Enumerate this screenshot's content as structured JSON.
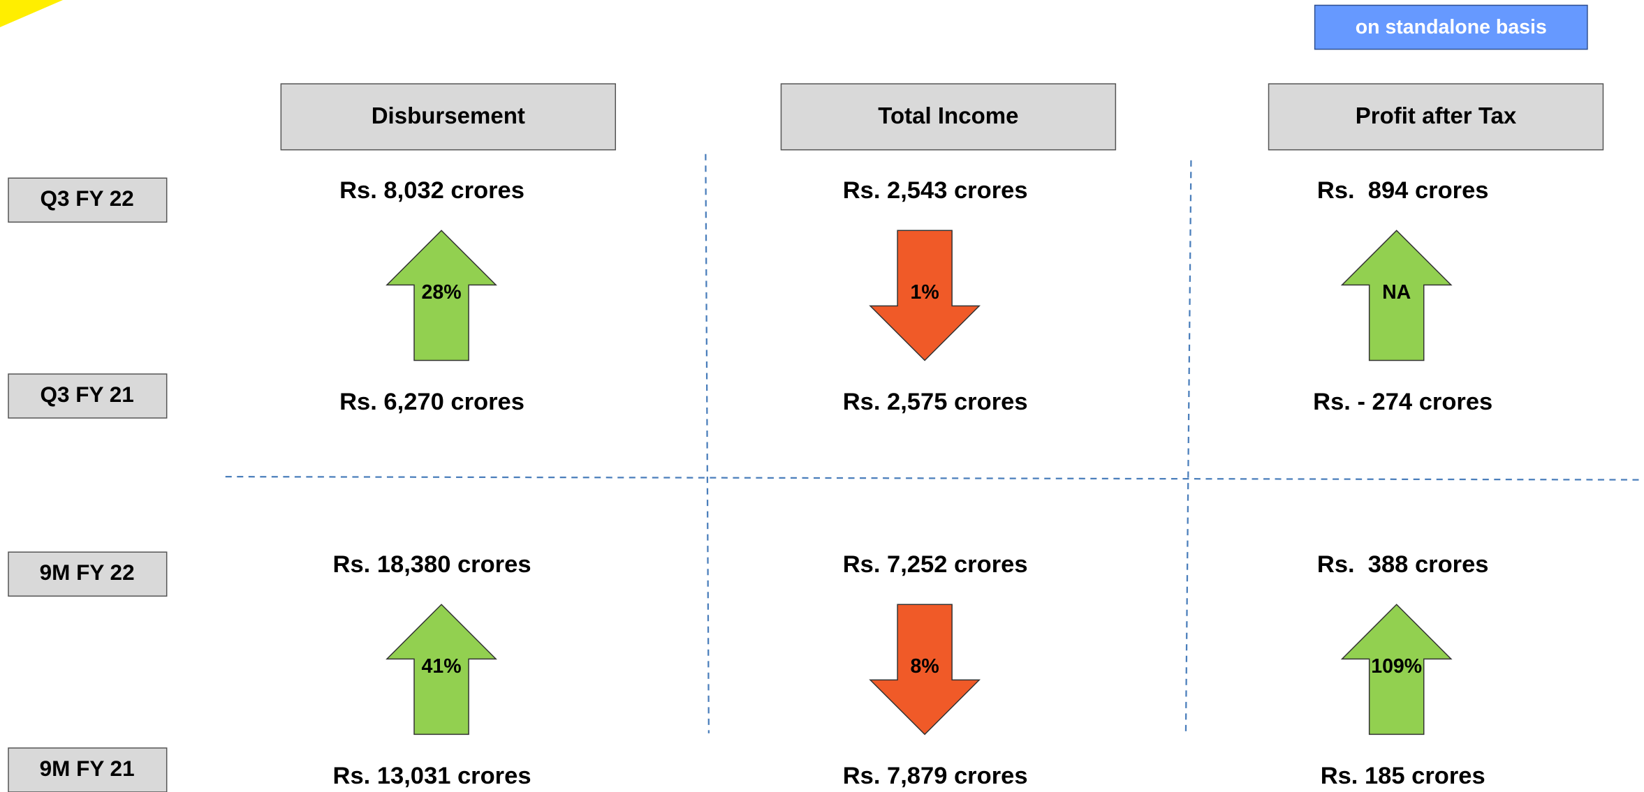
{
  "badge": "on standalone basis",
  "columns": [
    "Disbursement",
    "Total Income",
    "Profit after Tax"
  ],
  "row_labels": [
    "Q3 FY 22",
    "Q3 FY 21",
    "9M FY 22",
    "9M FY 21"
  ],
  "sections": [
    {
      "cells": [
        {
          "current": "Rs. 8,032 crores",
          "change": "28%",
          "direction": "up",
          "color": "#92d050",
          "previous": "Rs. 6,270 crores"
        },
        {
          "current": "Rs. 2,543 crores",
          "change": "1%",
          "direction": "down",
          "color": "#f05a28",
          "previous": "Rs. 2,575 crores"
        },
        {
          "current": "Rs.  894 crores",
          "change": "NA",
          "direction": "up",
          "color": "#92d050",
          "previous": "Rs. - 274 crores"
        }
      ]
    },
    {
      "cells": [
        {
          "current": "Rs. 18,380 crores",
          "change": "41%",
          "direction": "up",
          "color": "#92d050",
          "previous": "Rs. 13,031 crores"
        },
        {
          "current": "Rs. 7,252 crores",
          "change": "8%",
          "direction": "down",
          "color": "#f05a28",
          "previous": "Rs. 7,879 crores"
        },
        {
          "current": "Rs.  388 crores",
          "change": "109%",
          "direction": "up",
          "color": "#92d050",
          "previous": "Rs. 185 crores"
        }
      ]
    }
  ]
}
